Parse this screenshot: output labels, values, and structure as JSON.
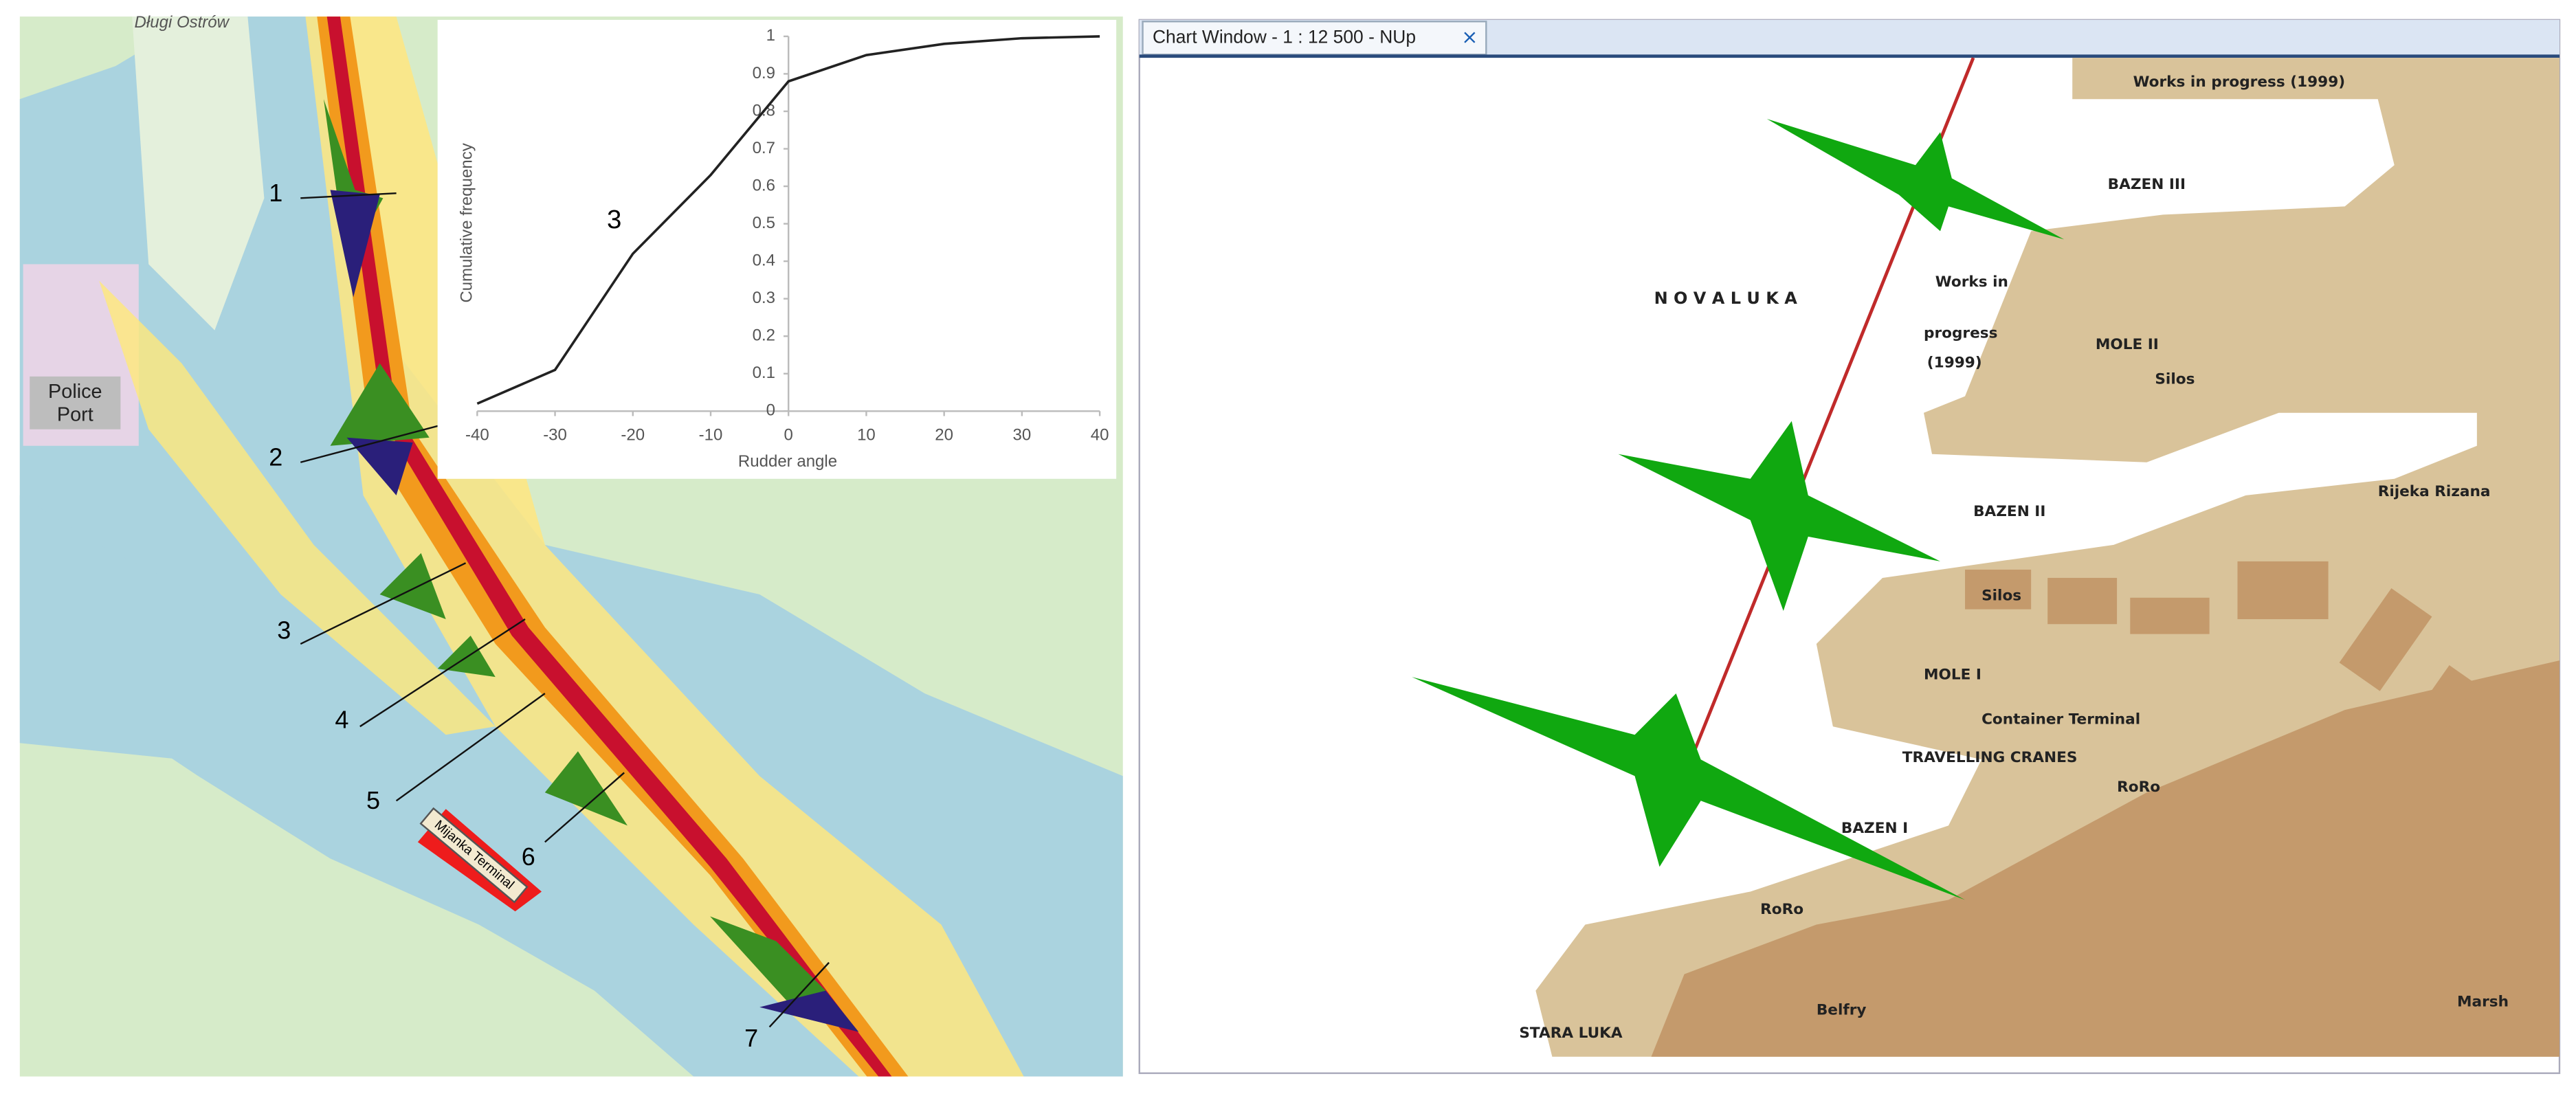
{
  "left_map": {
    "place_label": "Długi Ostrów",
    "port_label": "Police Port",
    "terminal_label": "Mijanka Terminal",
    "section_labels": [
      "1",
      "2",
      "3",
      "4",
      "5",
      "6",
      "7"
    ]
  },
  "chart_data": {
    "type": "line",
    "annotation": "3",
    "ylabel": "Cumulative frequency",
    "xlabel": "Rudder angle",
    "color": "#222222",
    "x": [
      -40,
      -30,
      -20,
      -10,
      0,
      10,
      20,
      30,
      40
    ],
    "values": [
      0.02,
      0.11,
      0.42,
      0.63,
      0.88,
      0.95,
      0.98,
      0.995,
      1
    ],
    "xlim": [
      -40,
      40
    ],
    "ylim": [
      0,
      1
    ],
    "xticks": [
      -40,
      -30,
      -20,
      -10,
      0,
      10,
      20,
      30,
      40
    ],
    "yticks": [
      0,
      0.1,
      0.2,
      0.3,
      0.4,
      0.5,
      0.6,
      0.7,
      0.8,
      0.9,
      1
    ]
  },
  "chart_window": {
    "tab_title": "Chart Window - 1 : 12 500 - NUp",
    "close": "×",
    "labels": [
      "Works in progress (1999)",
      "BAZEN III",
      "N O V A   L U K A",
      "Works in",
      "progress",
      "(1999)",
      "MOLE II",
      "Silos",
      "BAZEN II",
      "Rijeka Rizana",
      "Silos",
      "MOLE I",
      "Container Terminal",
      "TRAVELLING CRANES",
      "RoRo",
      "BAZEN I",
      "RoRo",
      "Belfry",
      "STARA LUKA",
      "Marsh"
    ]
  }
}
